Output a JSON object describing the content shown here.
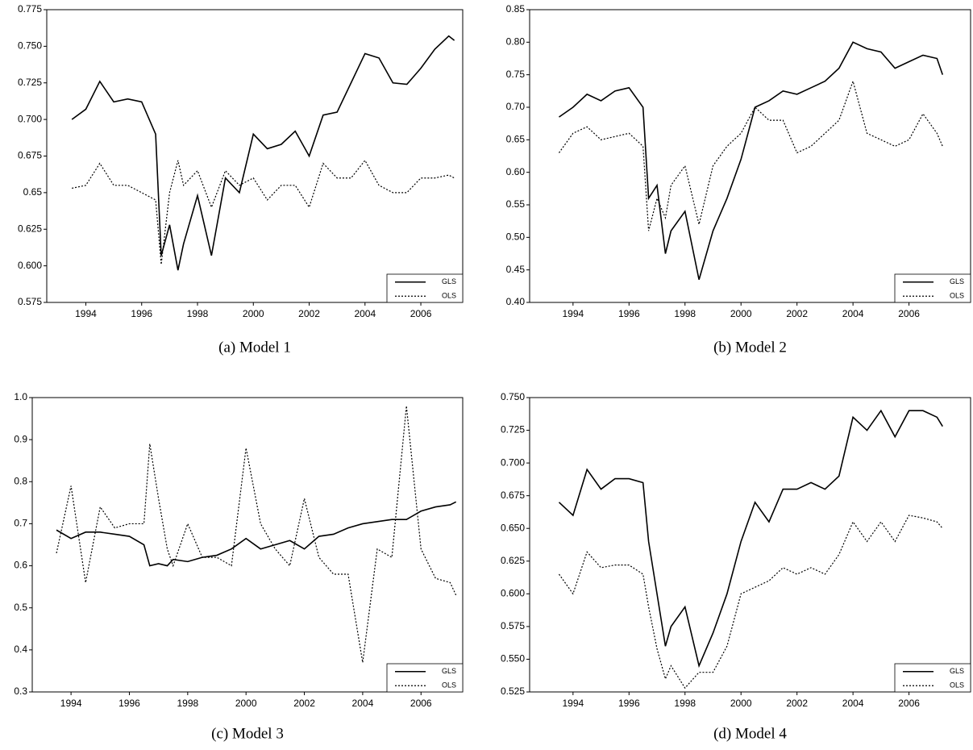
{
  "chart_data": [
    {
      "type": "line",
      "caption": "(a) Model 1",
      "legend": "lower right",
      "x": [
        1993.5,
        1994,
        1994.5,
        1995,
        1995.5,
        1996,
        1996.5,
        1996.7,
        1997,
        1997.3,
        1997.5,
        1998,
        1998.5,
        1999,
        1999.5,
        2000,
        2000.5,
        2001,
        2001.5,
        2002,
        2002.5,
        2003,
        2003.5,
        2004,
        2004.5,
        2005,
        2005.5,
        2006,
        2006.5,
        2007,
        2007.2
      ],
      "xlim": [
        1992.6,
        2007.5
      ],
      "xticks": [
        1994,
        1996,
        1998,
        2000,
        2002,
        2004,
        2006
      ],
      "ylim": [
        0.575,
        0.775
      ],
      "yticks": [
        0.575,
        {
          "value": 0.6,
          "label": "0.600"
        },
        0.625,
        0.65,
        0.675,
        {
          "value": 0.7,
          "label": "0.700"
        },
        0.725,
        {
          "value": 0.75,
          "label": "0.750"
        },
        0.775
      ],
      "series": [
        {
          "name": "GLS",
          "color": "#000000",
          "style": "solid",
          "values": [
            0.7,
            0.707,
            0.726,
            0.712,
            0.714,
            0.712,
            0.69,
            0.607,
            0.628,
            0.597,
            0.615,
            0.648,
            0.607,
            0.66,
            0.65,
            0.69,
            0.68,
            0.683,
            0.692,
            0.675,
            0.703,
            0.705,
            0.725,
            0.745,
            0.742,
            0.725,
            0.724,
            0.735,
            0.748,
            0.757,
            0.754
          ]
        },
        {
          "name": "OLS",
          "color": "#000000",
          "style": "dotted",
          "values": [
            0.653,
            0.655,
            0.67,
            0.655,
            0.655,
            0.65,
            0.645,
            0.601,
            0.65,
            0.672,
            0.655,
            0.665,
            0.64,
            0.665,
            0.655,
            0.66,
            0.645,
            0.655,
            0.655,
            0.64,
            0.67,
            0.66,
            0.66,
            0.672,
            0.655,
            0.65,
            0.65,
            0.66,
            0.66,
            0.662,
            0.66
          ]
        }
      ]
    },
    {
      "type": "line",
      "caption": "(b) Model 2",
      "legend": "lower right",
      "x": [
        1993.5,
        1994,
        1994.5,
        1995,
        1995.5,
        1996,
        1996.5,
        1996.7,
        1997,
        1997.3,
        1997.5,
        1998,
        1998.5,
        1999,
        1999.5,
        2000,
        2000.5,
        2001,
        2001.5,
        2002,
        2002.5,
        2003,
        2003.5,
        2004,
        2004.5,
        2005,
        2005.5,
        2006,
        2006.5,
        2007,
        2007.2
      ],
      "xlim": [
        1992.45,
        2008.2
      ],
      "xticks": [
        1994,
        1996,
        1998,
        2000,
        2002,
        2004,
        2006
      ],
      "ylim": [
        0.4,
        0.85
      ],
      "yticks": [
        {
          "value": 0.4,
          "label": "0.40"
        },
        0.45,
        {
          "value": 0.5,
          "label": "0.50"
        },
        0.55,
        {
          "value": 0.6,
          "label": "0.60"
        },
        0.65,
        {
          "value": 0.7,
          "label": "0.70"
        },
        0.75,
        {
          "value": 0.8,
          "label": "0.80"
        },
        0.85
      ],
      "series": [
        {
          "name": "GLS",
          "color": "#000000",
          "style": "solid",
          "values": [
            0.685,
            0.7,
            0.72,
            0.71,
            0.725,
            0.73,
            0.7,
            0.56,
            0.58,
            0.475,
            0.51,
            0.54,
            0.435,
            0.51,
            0.56,
            0.62,
            0.7,
            0.71,
            0.725,
            0.72,
            0.73,
            0.74,
            0.76,
            0.8,
            0.79,
            0.785,
            0.76,
            0.77,
            0.78,
            0.775,
            0.75
          ]
        },
        {
          "name": "OLS",
          "color": "#000000",
          "style": "dotted",
          "values": [
            0.63,
            0.66,
            0.67,
            0.65,
            0.655,
            0.66,
            0.64,
            0.51,
            0.56,
            0.53,
            0.58,
            0.61,
            0.52,
            0.61,
            0.64,
            0.66,
            0.7,
            0.68,
            0.68,
            0.63,
            0.64,
            0.66,
            0.68,
            0.74,
            0.66,
            0.65,
            0.64,
            0.65,
            0.69,
            0.66,
            0.64
          ]
        }
      ]
    },
    {
      "type": "line",
      "caption": "(c) Model 3",
      "legend": "lower right",
      "x": [
        1993.5,
        1994,
        1994.5,
        1995,
        1995.5,
        1996,
        1996.5,
        1996.7,
        1997,
        1997.3,
        1997.5,
        1998,
        1998.5,
        1999,
        1999.5,
        2000,
        2000.5,
        2001,
        2001.5,
        2002,
        2002.5,
        2003,
        2003.5,
        2004,
        2004.5,
        2005,
        2005.5,
        2006,
        2006.5,
        2007,
        2007.2
      ],
      "xlim": [
        1992.67,
        2007.43
      ],
      "xticks": [
        1994,
        1996,
        1998,
        2000,
        2002,
        2004,
        2006
      ],
      "ylim": [
        0.3,
        1.0
      ],
      "yticks": [
        0.3,
        0.4,
        0.5,
        0.6,
        0.7,
        0.8,
        0.9,
        {
          "value": 1.0,
          "label": "1.0"
        }
      ],
      "series": [
        {
          "name": "GLS",
          "color": "#000000",
          "style": "solid",
          "values": [
            0.685,
            0.665,
            0.68,
            0.68,
            0.675,
            0.67,
            0.65,
            0.6,
            0.605,
            0.6,
            0.615,
            0.61,
            0.62,
            0.625,
            0.64,
            0.665,
            0.64,
            0.65,
            0.66,
            0.64,
            0.67,
            0.675,
            0.69,
            0.7,
            0.705,
            0.71,
            0.71,
            0.73,
            0.74,
            0.745,
            0.752
          ]
        },
        {
          "name": "OLS",
          "color": "#000000",
          "style": "dotted",
          "values": [
            0.63,
            0.79,
            0.56,
            0.74,
            0.69,
            0.7,
            0.7,
            0.89,
            0.76,
            0.64,
            0.6,
            0.7,
            0.62,
            0.62,
            0.6,
            0.88,
            0.7,
            0.64,
            0.6,
            0.76,
            0.62,
            0.58,
            0.58,
            0.37,
            0.64,
            0.62,
            0.98,
            0.64,
            0.57,
            0.56,
            0.53
          ]
        }
      ]
    },
    {
      "type": "line",
      "caption": "(d) Model 4",
      "legend": "lower right",
      "x": [
        1993.5,
        1994,
        1994.5,
        1995,
        1995.5,
        1996,
        1996.5,
        1996.7,
        1997,
        1997.3,
        1997.5,
        1998,
        1998.5,
        1999,
        1999.5,
        2000,
        2000.5,
        2001,
        2001.5,
        2002,
        2002.5,
        2003,
        2003.5,
        2004,
        2004.5,
        2005,
        2005.5,
        2006,
        2006.5,
        2007,
        2007.2
      ],
      "xlim": [
        1992.45,
        2008.2
      ],
      "xticks": [
        1994,
        1996,
        1998,
        2000,
        2002,
        2004,
        2006
      ],
      "ylim": [
        0.525,
        0.75
      ],
      "yticks": [
        0.525,
        {
          "value": 0.55,
          "label": "0.550"
        },
        0.575,
        {
          "value": 0.6,
          "label": "0.600"
        },
        0.625,
        {
          "value": 0.65,
          "label": "0.650"
        },
        0.675,
        {
          "value": 0.7,
          "label": "0.700"
        },
        0.725,
        {
          "value": 0.75,
          "label": "0.750"
        }
      ],
      "series": [
        {
          "name": "GLS",
          "color": "#000000",
          "style": "solid",
          "values": [
            0.67,
            0.66,
            0.695,
            0.68,
            0.688,
            0.688,
            0.685,
            0.64,
            0.6,
            0.56,
            0.575,
            0.59,
            0.545,
            0.57,
            0.6,
            0.64,
            0.67,
            0.655,
            0.68,
            0.68,
            0.685,
            0.68,
            0.69,
            0.735,
            0.725,
            0.74,
            0.72,
            0.74,
            0.74,
            0.735,
            0.728
          ]
        },
        {
          "name": "OLS",
          "color": "#000000",
          "style": "dotted",
          "values": [
            0.615,
            0.6,
            0.632,
            0.62,
            0.622,
            0.622,
            0.615,
            0.59,
            0.558,
            0.535,
            0.545,
            0.528,
            0.54,
            0.54,
            0.56,
            0.6,
            0.605,
            0.61,
            0.62,
            0.615,
            0.62,
            0.615,
            0.63,
            0.655,
            0.64,
            0.655,
            0.64,
            0.66,
            0.658,
            0.655,
            0.65
          ]
        }
      ]
    }
  ]
}
